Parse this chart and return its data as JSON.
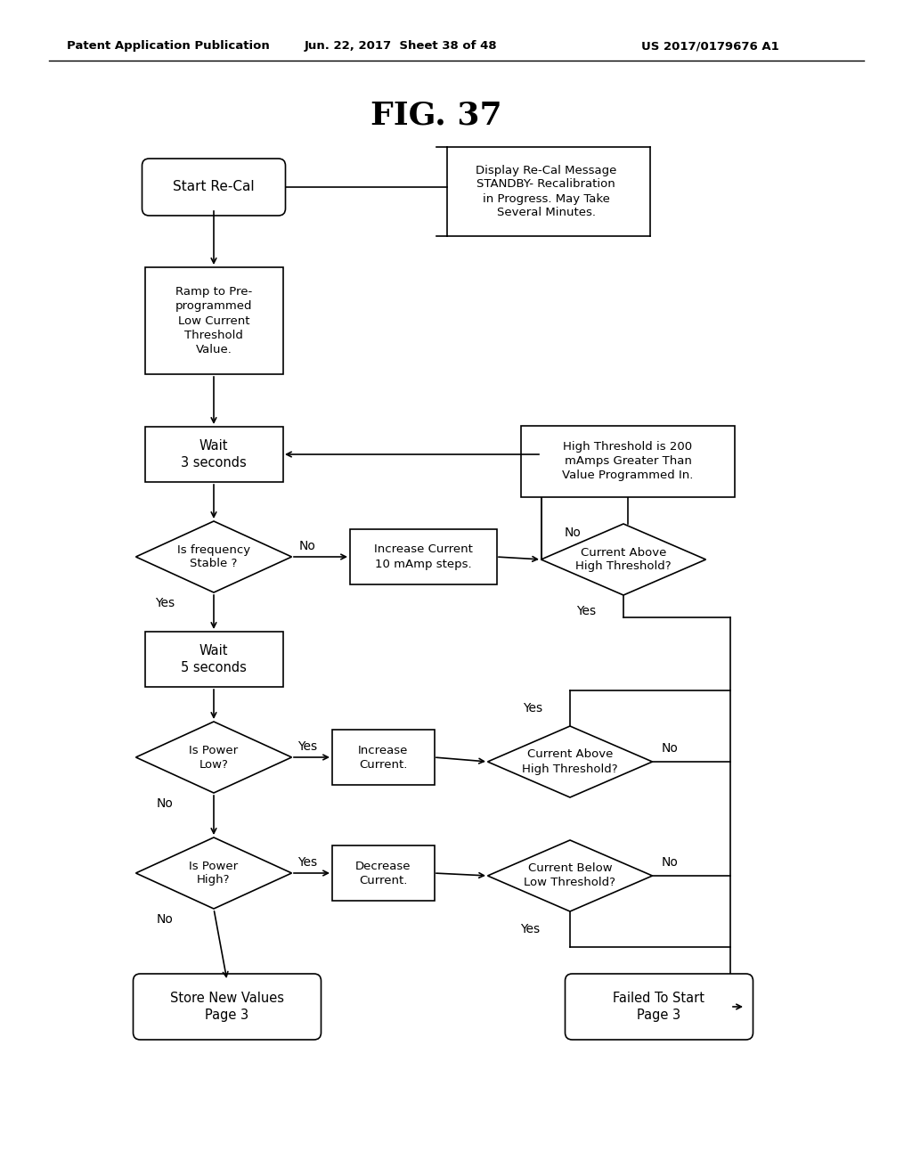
{
  "bg_color": "#ffffff",
  "header_left": "Patent Application Publication",
  "header_mid": "Jun. 22, 2017  Sheet 38 of 48",
  "header_right": "US 2017/0179676 A1",
  "fig_title": "FIG. 37",
  "lw": 1.2
}
